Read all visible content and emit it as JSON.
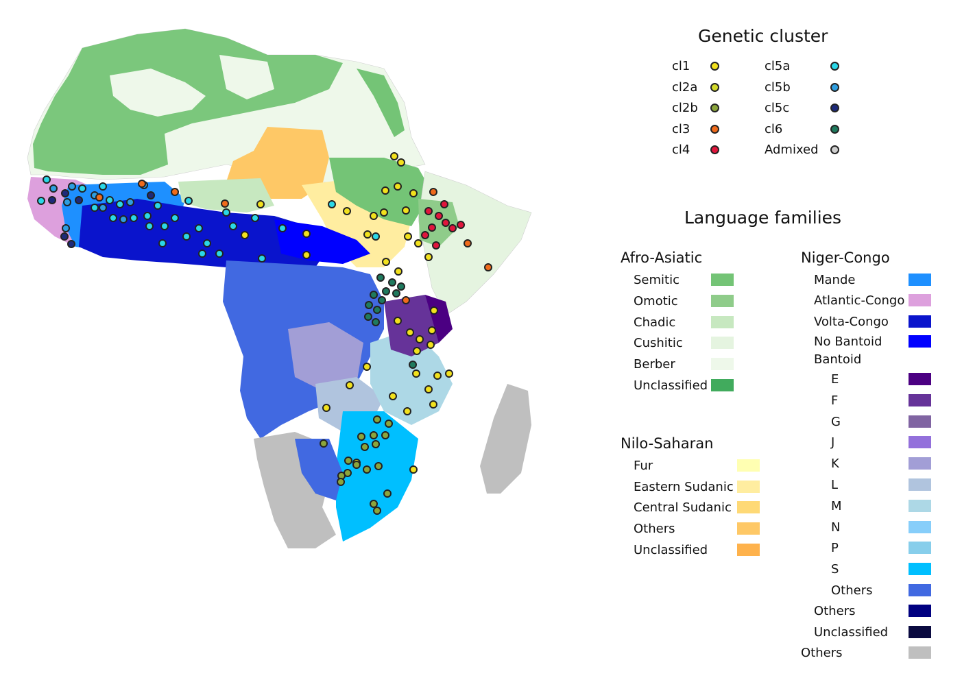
{
  "legend": {
    "genetic_title": "Genetic cluster",
    "clusters": [
      {
        "label": "cl1",
        "color": "#f2e11d"
      },
      {
        "label": "cl2a",
        "color": "#d2d92a"
      },
      {
        "label": "cl2b",
        "color": "#8ba53c"
      },
      {
        "label": "cl3",
        "color": "#f06b1c"
      },
      {
        "label": "cl4",
        "color": "#e0163c"
      },
      {
        "label": "cl5a",
        "color": "#2ad8e8"
      },
      {
        "label": "cl5b",
        "color": "#2e9ee0"
      },
      {
        "label": "cl5c",
        "color": "#1d2a7a"
      },
      {
        "label": "cl6",
        "color": "#1f7a5e"
      },
      {
        "label": "Admixed",
        "color": "#cfcfcf"
      }
    ],
    "language_title": "Language families",
    "afro_asiatic": {
      "title": "Afro-Asiatic",
      "items": [
        {
          "label": "Semitic",
          "color": "#74c476"
        },
        {
          "label": "Omotic",
          "color": "#8fcc8a"
        },
        {
          "label": "Chadic",
          "color": "#c7e8c0"
        },
        {
          "label": "Cushitic",
          "color": "#e5f4e0"
        },
        {
          "label": "Berber",
          "color": "#eef8ea"
        },
        {
          "label": "Unclassified",
          "color": "#41ab5d"
        }
      ]
    },
    "nilo_saharan": {
      "title": "Nilo-Saharan",
      "items": [
        {
          "label": "Fur",
          "color": "#ffffb2"
        },
        {
          "label": "Eastern Sudanic",
          "color": "#ffeda0"
        },
        {
          "label": "Central Sudanic",
          "color": "#fed976"
        },
        {
          "label": "Others",
          "color": "#fec866"
        },
        {
          "label": "Unclassified",
          "color": "#feb24c"
        }
      ]
    },
    "niger_congo": {
      "title": "Niger-Congo",
      "items": [
        {
          "label": "Mande",
          "color": "#1e90ff"
        },
        {
          "label": "Atlantic-Congo",
          "color": "#dda0dd"
        },
        {
          "label": "Volta-Congo",
          "color": "#0a14cc"
        },
        {
          "label": "No Bantoid",
          "color": "#0000ff"
        }
      ],
      "bantoid_title": "Bantoid",
      "bantoid_items": [
        {
          "label": "E",
          "color": "#4b0082"
        },
        {
          "label": "F",
          "color": "#663399"
        },
        {
          "label": "G",
          "color": "#8064a2"
        },
        {
          "label": "J",
          "color": "#9370db"
        },
        {
          "label": "K",
          "color": "#a29ed6"
        },
        {
          "label": "L",
          "color": "#b0c4de"
        },
        {
          "label": "M",
          "color": "#add8e6"
        },
        {
          "label": "N",
          "color": "#87cefa"
        },
        {
          "label": "P",
          "color": "#87ceeb"
        },
        {
          "label": "S",
          "color": "#00bfff"
        },
        {
          "label": "Others",
          "color": "#4169e1"
        }
      ],
      "tail_items": [
        {
          "label": "Others",
          "color": "#000080"
        },
        {
          "label": "Unclassified",
          "color": "#0a0a40"
        }
      ]
    },
    "others": {
      "label": "Others",
      "color": "#bfbfbf"
    }
  }
}
